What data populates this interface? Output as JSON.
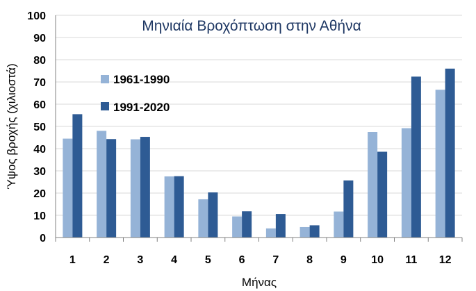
{
  "chart_data": {
    "type": "bar",
    "title": "Μηνιαία Βροχόπτωση στην Αθήνα",
    "xlabel": "Μήνας",
    "ylabel": "Ύψος βροχής (χιλιοστά)",
    "categories": [
      "1",
      "2",
      "3",
      "4",
      "5",
      "6",
      "7",
      "8",
      "9",
      "10",
      "11",
      "12"
    ],
    "ylim": [
      0,
      100
    ],
    "yticks": [
      "0",
      "10",
      "20",
      "30",
      "40",
      "50",
      "60",
      "70",
      "80",
      "90",
      "100"
    ],
    "grid": true,
    "legend_position": "top-left",
    "series": [
      {
        "name": "1961-1990",
        "color": "#95b3d7",
        "values": [
          44.5,
          48,
          44.2,
          27.5,
          17.2,
          9.5,
          4.1,
          4.7,
          11.7,
          47.5,
          49.2,
          66.5
        ]
      },
      {
        "name": "1991-2020",
        "color": "#2e5b94",
        "values": [
          55.5,
          44.3,
          45.3,
          27.6,
          20.3,
          11.8,
          10.6,
          5.5,
          25.7,
          38.6,
          72.4,
          76
        ]
      }
    ]
  }
}
